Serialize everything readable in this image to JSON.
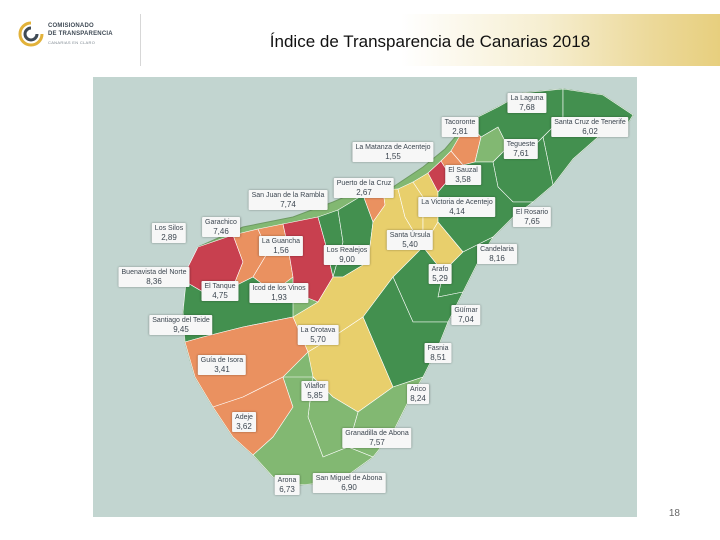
{
  "header": {
    "logo_lines": [
      "COMISIONADO",
      "DE TRANSPARENCIA",
      "CANARIAS EN CLARO"
    ],
    "title": "Índice de Transparencia de Canarias 2018"
  },
  "page_number": "18",
  "colors": {
    "sea": "#c2d5d0",
    "high": "#43904f",
    "mid_high": "#82b872",
    "mid": "#e8cf6c",
    "low": "#ea9160",
    "very_low": "#c8404f"
  },
  "municipalities": [
    {
      "name": "La Laguna",
      "value": "7,68"
    },
    {
      "name": "Tacoronte",
      "value": "2,81"
    },
    {
      "name": "Santa Cruz de Tenerife",
      "value": "6,02"
    },
    {
      "name": "Tegueste",
      "value": "7,61"
    },
    {
      "name": "La Matanza de Acentejo",
      "value": "1,55"
    },
    {
      "name": "El Sauzal",
      "value": "3,58"
    },
    {
      "name": "Puerto de la Cruz",
      "value": "2,67"
    },
    {
      "name": "San Juan de la Rambla",
      "value": "7,74"
    },
    {
      "name": "La Victoria de Acentejo",
      "value": "4,14"
    },
    {
      "name": "El Rosario",
      "value": "7,65"
    },
    {
      "name": "Los Silos",
      "value": "2,89"
    },
    {
      "name": "Garachico",
      "value": "7,46"
    },
    {
      "name": "La Guancha",
      "value": "1,56"
    },
    {
      "name": "Los Realejos",
      "value": "9,00"
    },
    {
      "name": "Santa Úrsula",
      "value": "5,40"
    },
    {
      "name": "Candelaria",
      "value": "8,16"
    },
    {
      "name": "Buenavista del Norte",
      "value": "8,36"
    },
    {
      "name": "El Tanque",
      "value": "4,75"
    },
    {
      "name": "Icod de los Vinos",
      "value": "1,93"
    },
    {
      "name": "Arafo",
      "value": "5,29"
    },
    {
      "name": "Santiago del Teide",
      "value": "9,45"
    },
    {
      "name": "La Orotava",
      "value": "5,70"
    },
    {
      "name": "Güímar",
      "value": "7,04"
    },
    {
      "name": "Guía de Isora",
      "value": "3,41"
    },
    {
      "name": "Fasnia",
      "value": "8,51"
    },
    {
      "name": "Vilaflor",
      "value": "5,85"
    },
    {
      "name": "Arico",
      "value": "8,24"
    },
    {
      "name": "Adeje",
      "value": "3,62"
    },
    {
      "name": "Granadilla de Abona",
      "value": "7,57"
    },
    {
      "name": "Arona",
      "value": "6,73"
    },
    {
      "name": "San Miguel de Abona",
      "value": "6,90"
    }
  ]
}
